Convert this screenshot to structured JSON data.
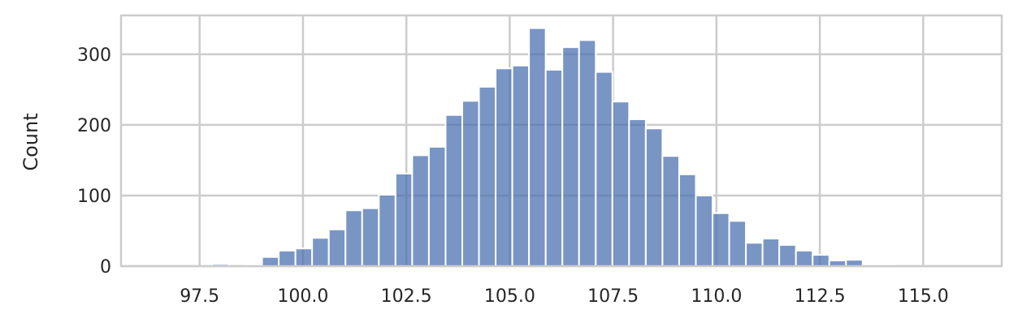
{
  "chart_data": {
    "type": "bar",
    "subtype": "histogram",
    "title": "",
    "xlabel": "",
    "ylabel": "Count",
    "bin_start": 97.8,
    "bin_width": 0.4035,
    "counts": [
      3,
      0,
      2,
      13,
      22,
      25,
      40,
      52,
      79,
      82,
      101,
      131,
      157,
      169,
      214,
      234,
      254,
      280,
      284,
      337,
      278,
      310,
      320,
      275,
      233,
      208,
      195,
      156,
      130,
      100,
      75,
      64,
      33,
      39,
      30,
      22,
      16,
      8,
      9,
      2,
      1
    ],
    "xlim": [
      95.6,
      116.9
    ],
    "ylim": [
      0,
      355
    ],
    "xticks": [
      97.5,
      100.0,
      102.5,
      105.0,
      107.5,
      110.0,
      112.5,
      115.0
    ],
    "xtick_labels": [
      "97.5",
      "100.0",
      "102.5",
      "105.0",
      "107.5",
      "110.0",
      "112.5",
      "115.0"
    ],
    "yticks": [
      0,
      100,
      200,
      300
    ],
    "ytick_labels": [
      "0",
      "100",
      "200",
      "300"
    ],
    "grid": true,
    "colors": {
      "bar": "#4c72b0",
      "bar_alpha": 0.75,
      "grid": "#cccccc",
      "text": "#262626"
    }
  }
}
